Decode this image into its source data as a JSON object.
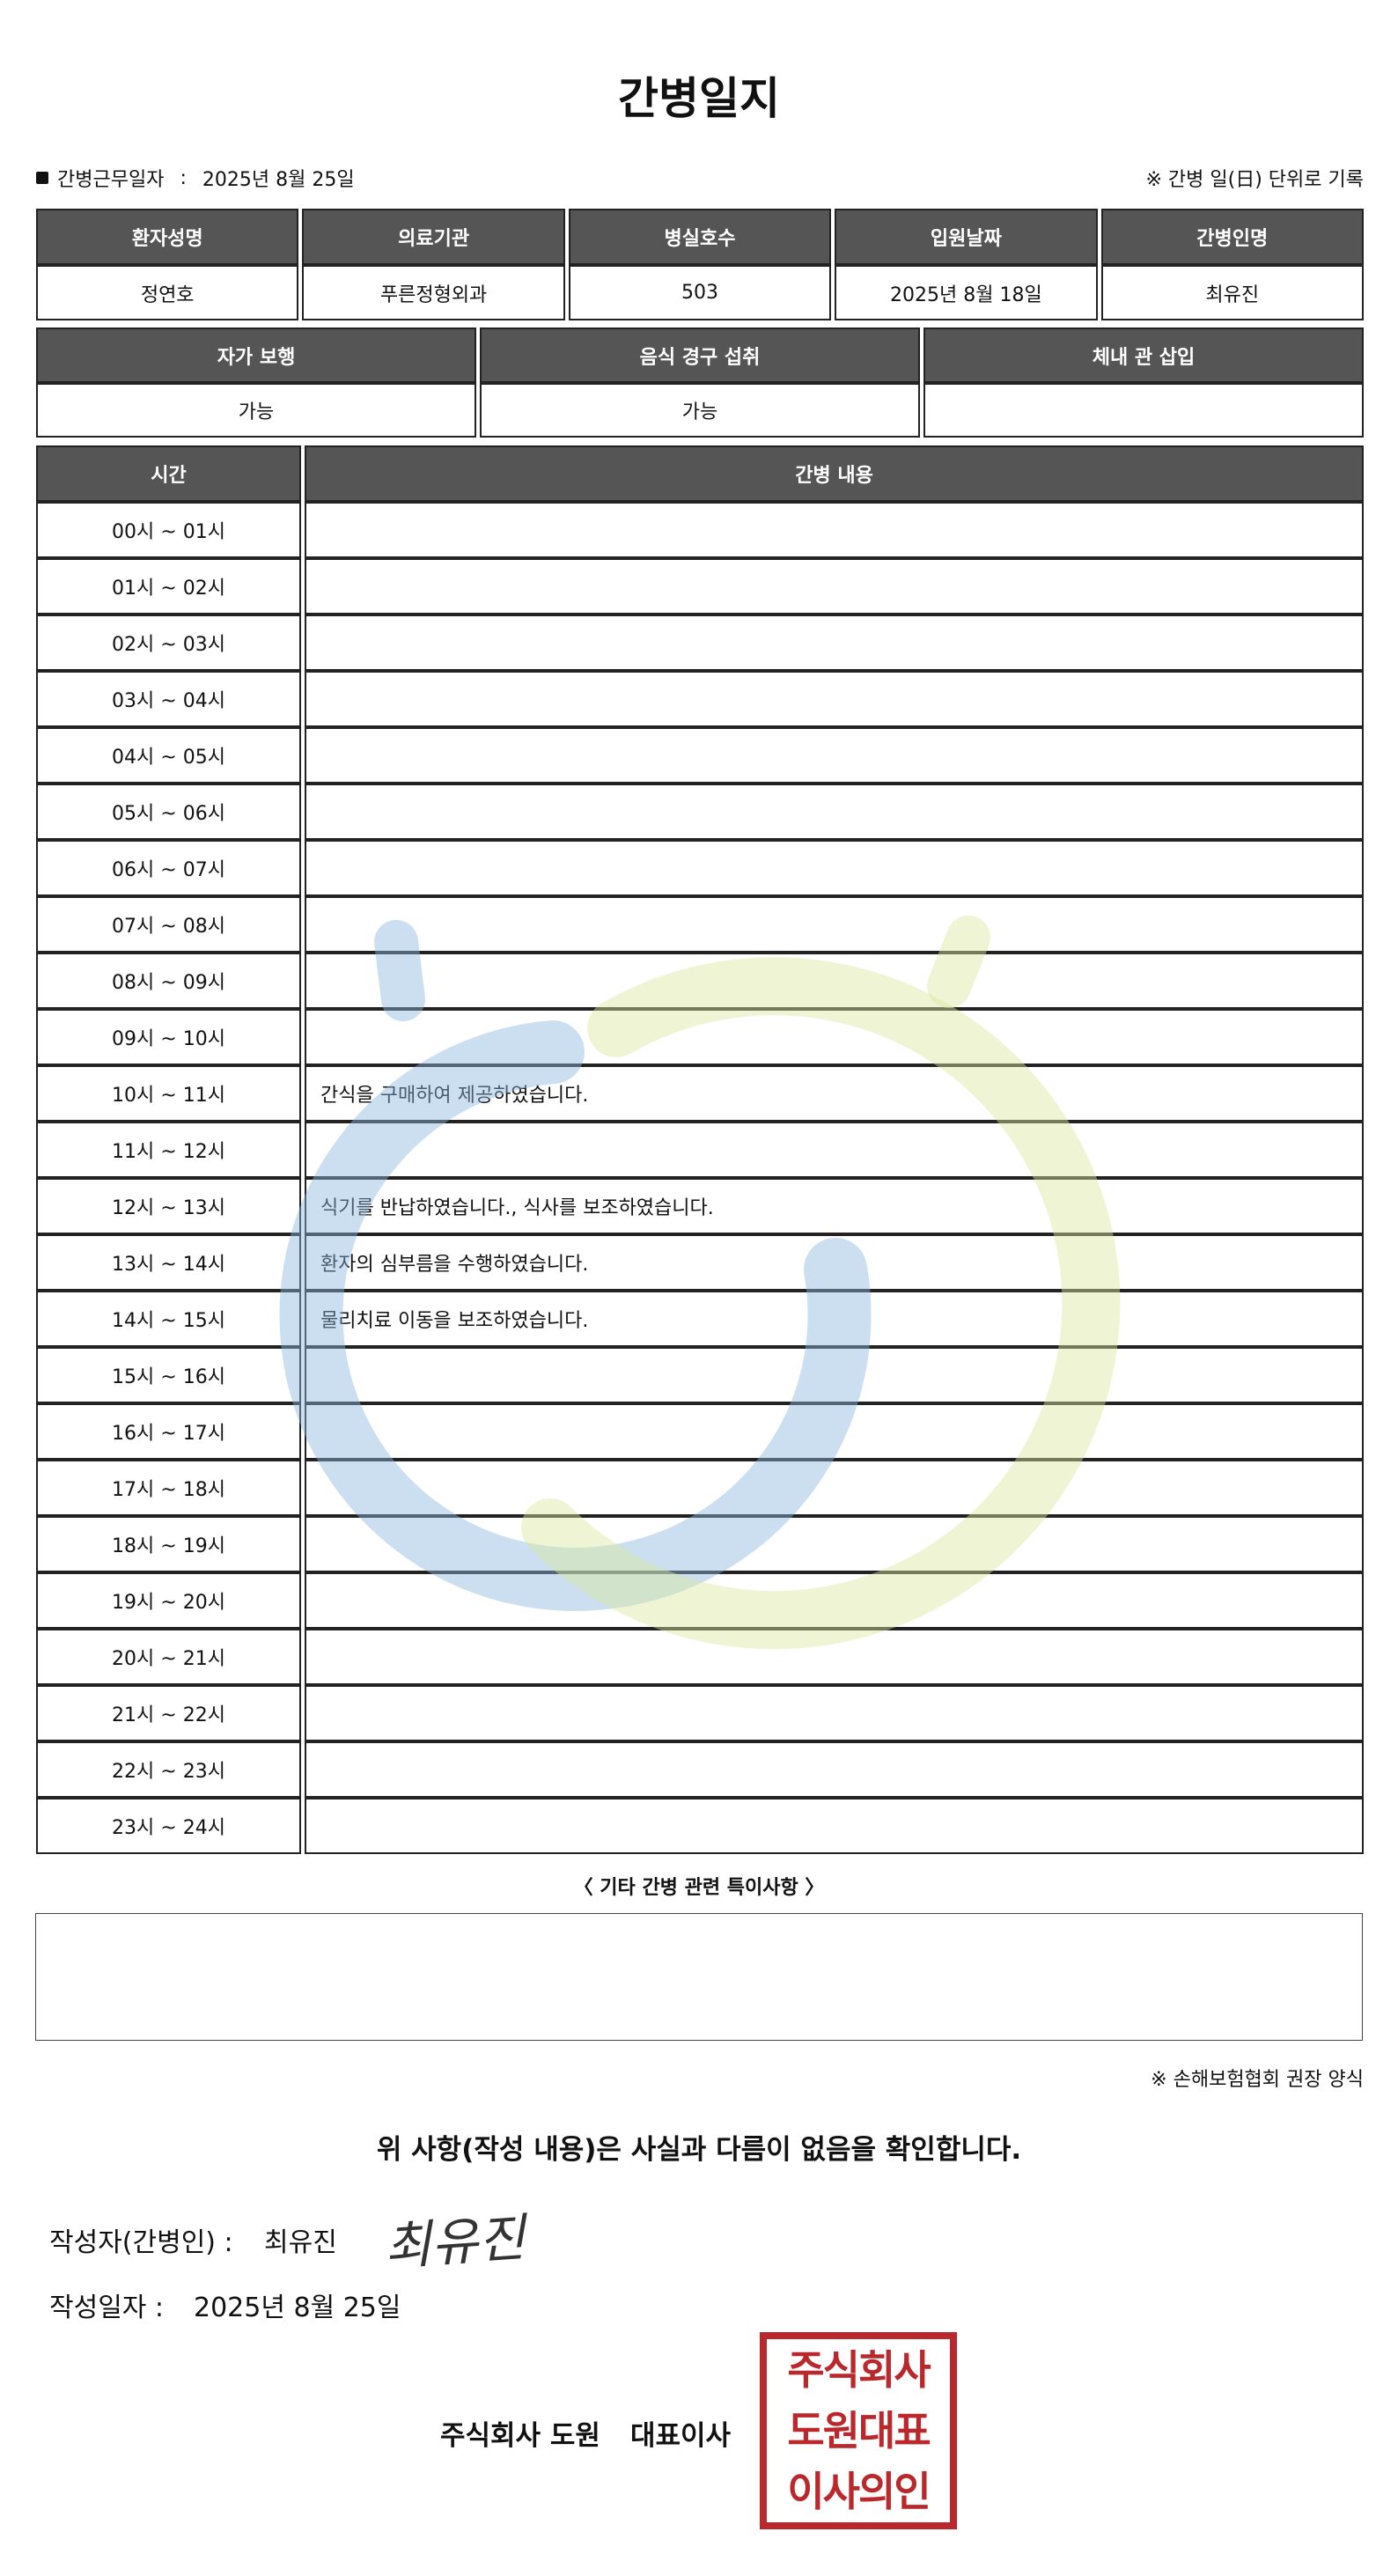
{
  "header": {
    "title": "간병일지",
    "work_date_label": "간병근무일자",
    "work_date_sep": ":",
    "work_date": "2025년 8월 25일",
    "note": "※ 간병 일(日) 단위로 기록"
  },
  "info_table": {
    "headers": [
      "환자성명",
      "의료기관",
      "병실호수",
      "입원날짜",
      "간병인명"
    ],
    "row": [
      "정연호",
      "푸른정형외과",
      "503",
      "2025년 8월 18일",
      "최유진"
    ]
  },
  "status_table": {
    "headers": [
      "자가 보행",
      "음식 경구 섭취",
      "체내 관 삽입"
    ],
    "row": [
      "가능",
      "가능"
    ]
  },
  "log_table": {
    "headers": [
      "시간",
      "간병 내용"
    ],
    "rows": [
      {
        "time": "00시 ~ 01시"
      },
      {
        "time": "01시 ~ 02시"
      },
      {
        "time": "02시 ~ 03시"
      },
      {
        "time": "03시 ~ 04시"
      },
      {
        "time": "04시 ~ 05시"
      },
      {
        "time": "05시 ~ 06시"
      },
      {
        "time": "06시 ~ 07시"
      },
      {
        "time": "07시 ~ 08시"
      },
      {
        "time": "08시 ~ 09시"
      },
      {
        "time": "09시 ~ 10시"
      },
      {
        "time": "10시 ~ 11시",
        "content": "간식을 구매하여 제공하였습니다."
      },
      {
        "time": "11시 ~ 12시"
      },
      {
        "time": "12시 ~ 13시",
        "content": "식기를 반납하였습니다., 식사를 보조하였습니다."
      },
      {
        "time": "13시 ~ 14시",
        "content": "환자의 심부름을 수행하였습니다."
      },
      {
        "time": "14시 ~ 15시",
        "content": "물리치료 이동을 보조하였습니다."
      },
      {
        "time": "15시 ~ 16시"
      },
      {
        "time": "16시 ~ 17시"
      },
      {
        "time": "17시 ~ 18시"
      },
      {
        "time": "18시 ~ 19시"
      },
      {
        "time": "19시 ~ 20시"
      },
      {
        "time": "20시 ~ 21시"
      },
      {
        "time": "21시 ~ 22시"
      },
      {
        "time": "22시 ~ 23시"
      },
      {
        "time": "23시 ~ 24시"
      }
    ]
  },
  "remarks": {
    "title": "〈 기타 간병 관련 특이사항 〉"
  },
  "footer": {
    "form_note": "※ 손해보험협회 권장 양식",
    "confirmation": "위 사항(작성 내용)은 사실과 다름이 없음을 확인합니다.",
    "writer_label": "작성자(간병인) :",
    "writer": "최유진",
    "signature": "최유진",
    "date_label": "작성일자 :",
    "date": "2025년 8월 25일",
    "company": "주식회사 도원",
    "ceo_title": "대표이사",
    "stamp": [
      "주식회사",
      "도원대표",
      "이사의인"
    ]
  }
}
